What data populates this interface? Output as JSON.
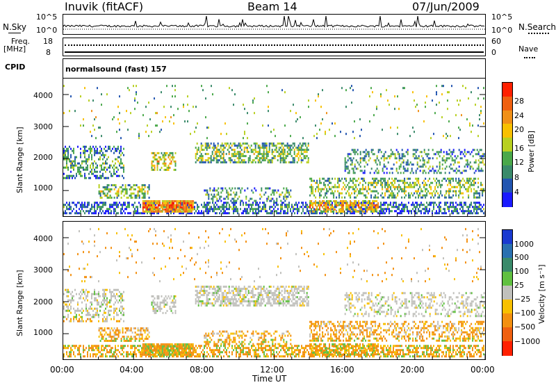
{
  "header": {
    "site": "Inuvik (fitACF)",
    "beam": "Beam 14",
    "date": "07/Jun/2009"
  },
  "status_panels": {
    "nsky_label": "N.Sky",
    "nsky_ticks": [
      "10^5",
      "10^0"
    ],
    "nsearch_label": "N.Search",
    "nsearch_ticks": [
      "10^5",
      "10^0"
    ],
    "freq_label_top": "Freq.",
    "freq_label_unit": "[MHz]",
    "freq_ticks": [
      "18",
      "8"
    ],
    "nave_label": "Nave",
    "nave_ticks": [
      "60",
      "0"
    ],
    "cpid_label": "CPID",
    "cpid_value": "normalsound (fast) 157"
  },
  "chart_data": [
    {
      "type": "heatmap",
      "name": "power-panel",
      "ylabel": "Slant Range [km]",
      "y_ticks": [
        "1000",
        "2000",
        "3000",
        "4000"
      ],
      "ylim": [
        200,
        4500
      ],
      "xlim_hours": [
        0,
        24
      ],
      "colorbar": {
        "label": "Power [dB]",
        "ticks": [
          "4",
          "8",
          "12",
          "16",
          "20",
          "24",
          "28"
        ],
        "colors": [
          "#1a1aff",
          "#2255b0",
          "#3a8a6a",
          "#4aa84a",
          "#b8d020",
          "#f8c000",
          "#f09018",
          "#ef6010",
          "#ff2000"
        ]
      }
    },
    {
      "type": "heatmap",
      "name": "velocity-panel",
      "ylabel": "Slant Range [km]",
      "y_ticks": [
        "1000",
        "2000",
        "3000",
        "4000"
      ],
      "ylim": [
        200,
        4500
      ],
      "xlim_hours": [
        0,
        24
      ],
      "colorbar": {
        "label": "Velocity [m s⁻¹]",
        "ticks": [
          "1000",
          "500",
          "100",
          "25",
          "−25",
          "−100",
          "−500",
          "−1000"
        ],
        "colors": [
          "#1a3ad0",
          "#2a70b0",
          "#3a8a6a",
          "#60c040",
          "#c0c0bc",
          "#f8c000",
          "#f39010",
          "#ef6010",
          "#ff2000"
        ]
      }
    }
  ],
  "x_axis": {
    "ticks": [
      "00:00",
      "04:00",
      "08:00",
      "12:00",
      "16:00",
      "20:00",
      "00:00"
    ],
    "label": "Time UT"
  }
}
